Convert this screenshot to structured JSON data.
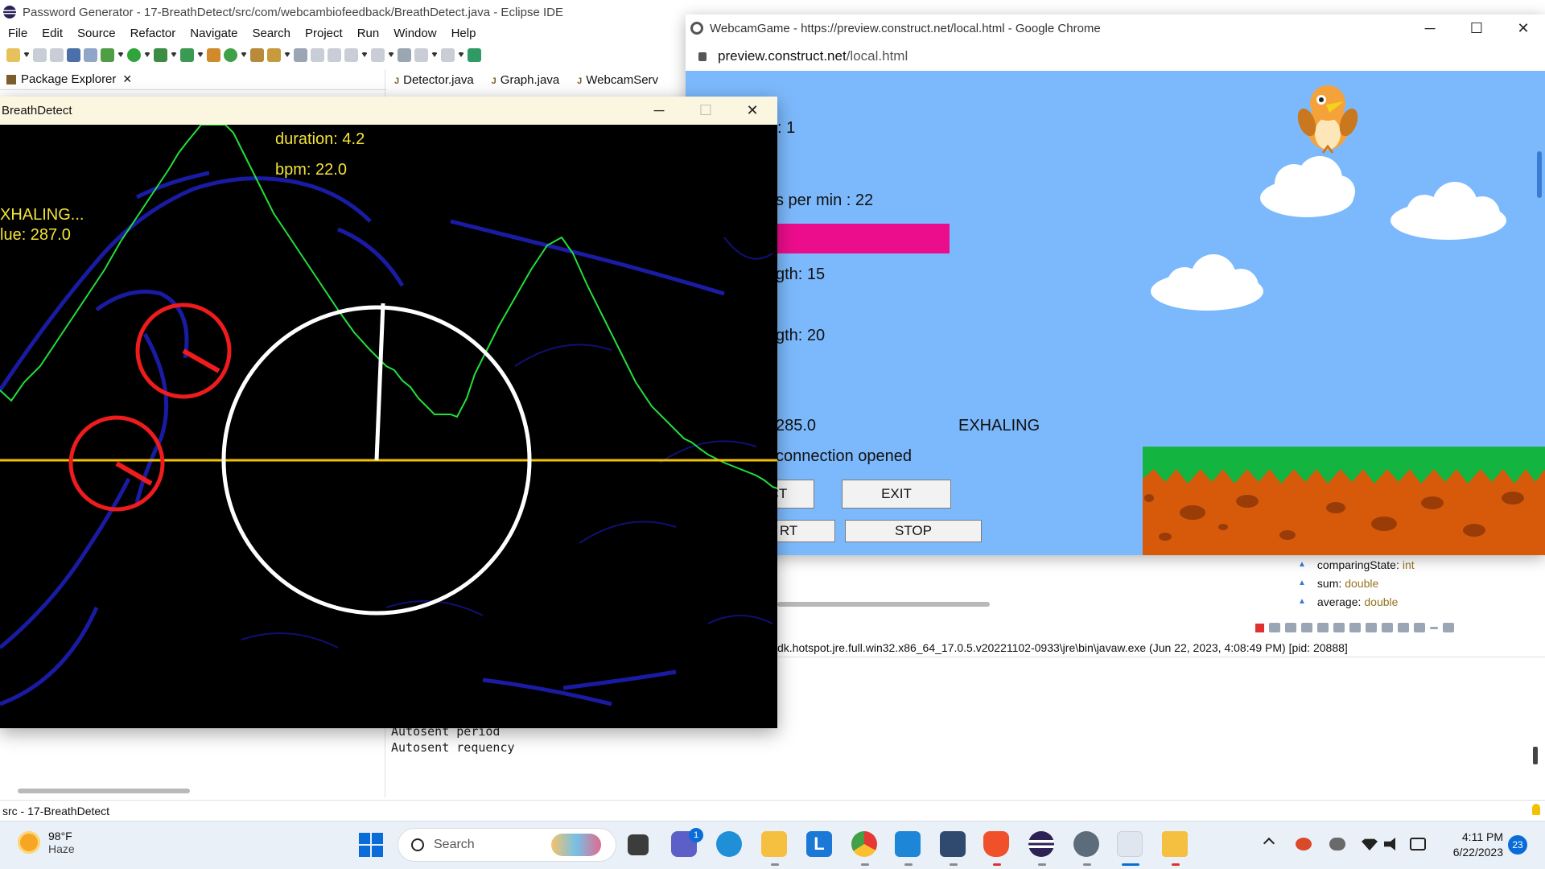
{
  "eclipse": {
    "title": "Password Generator - 17-BreathDetect/src/com/webcambiofeedback/BreathDetect.java - Eclipse IDE",
    "menu": [
      "File",
      "Edit",
      "Source",
      "Refactor",
      "Navigate",
      "Search",
      "Project",
      "Run",
      "Window",
      "Help"
    ],
    "package_explorer_tab": "Package Explorer",
    "editor_tabs": [
      "Detector.java",
      "Graph.java",
      "WebcamServ"
    ],
    "outline": [
      {
        "name": "comparingState",
        "type": "int"
      },
      {
        "name": "sum",
        "type": "double"
      },
      {
        "name": "average",
        "type": "double"
      }
    ],
    "console_header": "dk.hotspot.jre.full.win32.x86_64_17.0.5.v20221102-0933\\jre\\bin\\javaw.exe  (Jun 22, 2023, 4:08:49 PM) [pid: 20888]",
    "console_lines": [
      "Autosent period",
      "Autosent requency"
    ],
    "status_text": "src - 17-BreathDetect"
  },
  "breath_window": {
    "title": "BreathDetect",
    "duration_text": "duration: 4.2",
    "bpm_text": "bpm: 22.0",
    "state_text": "XHALING...",
    "value_text": "lue: 287.0",
    "colors": {
      "graph": "#22e03a",
      "baseline": "#f2c200",
      "overlay_text": "#f2e33a",
      "dial": "#ffffff",
      "mini_dial": "#ee1c1c"
    }
  },
  "chrome": {
    "title": "WebcamGame - https://preview.construct.net/local.html - Google Chrome",
    "url_host": "preview.construct.net",
    "url_path": "/local.html",
    "game": {
      "count_text": ": 1",
      "breaths_text": "s per min : 22",
      "length1_text": "gth: 15",
      "length2_text": "gth: 20",
      "value_text": "285.0",
      "state_text": "EXHALING",
      "connection_text": "connection opened",
      "buttons": {
        "connect_partial": "CT",
        "exit": "EXIT",
        "start_partial": "RT",
        "stop": "STOP"
      },
      "colors": {
        "sky": "#7cb9fc",
        "bar": "#ec0d8d",
        "grass": "#14b441",
        "dirt": "#d65a0a"
      }
    }
  },
  "taskbar": {
    "weather_temp": "98°F",
    "weather_desc": "Haze",
    "search_label": "Search",
    "clock_time": "4:11 PM",
    "clock_date": "6/22/2023",
    "notification_count": "23",
    "teams_badge": "1"
  }
}
